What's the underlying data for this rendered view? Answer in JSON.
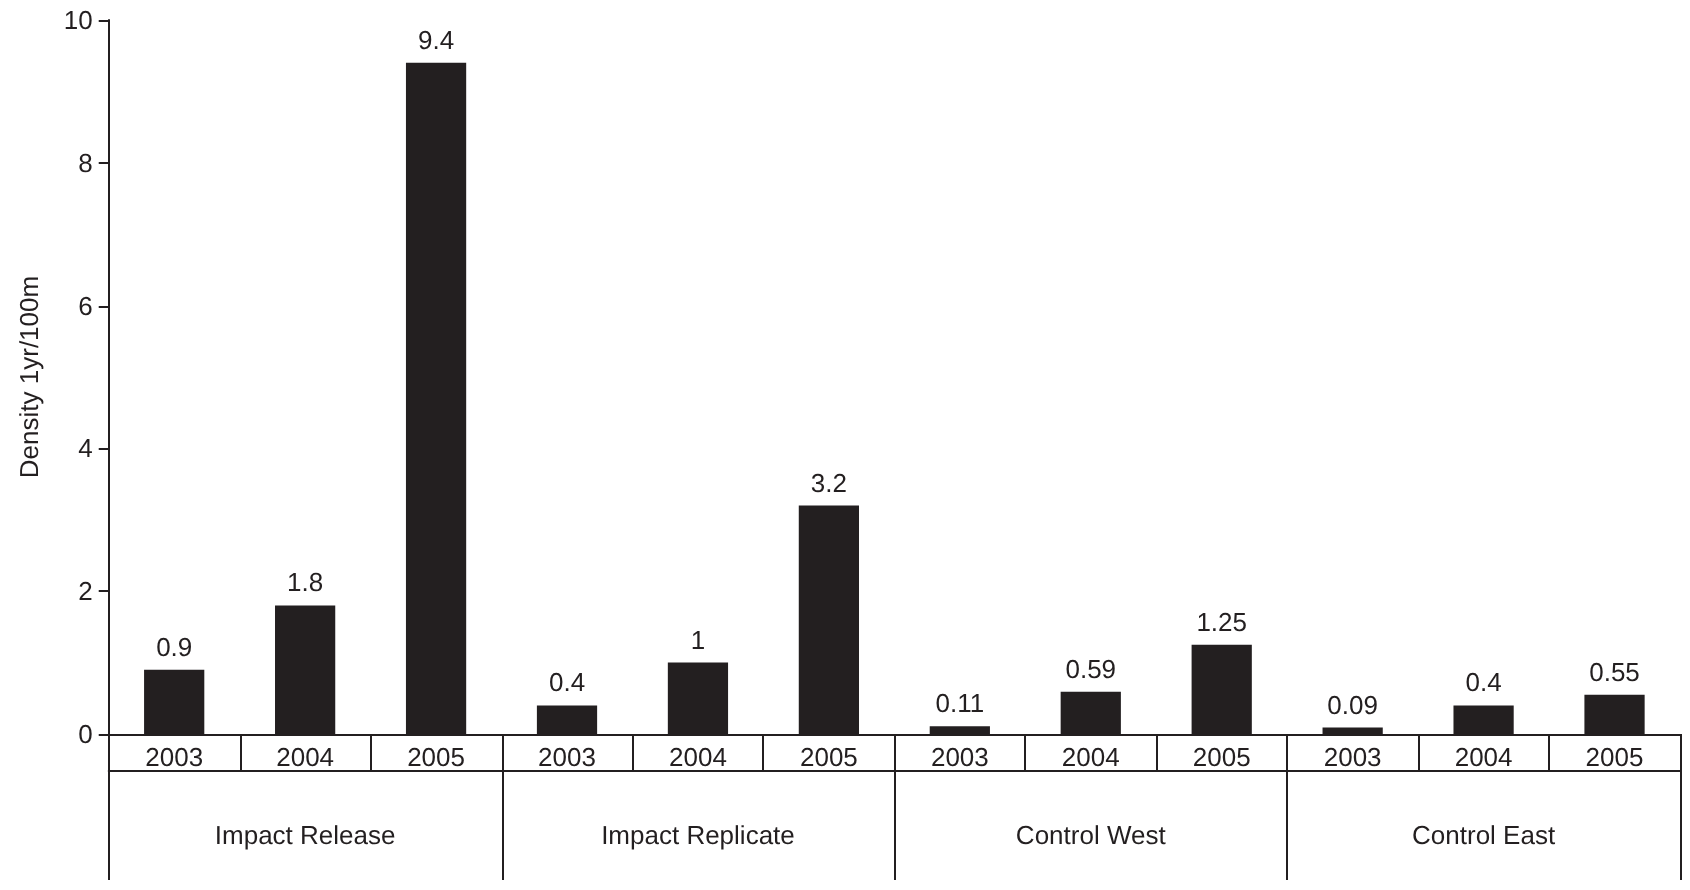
{
  "chart_data": {
    "type": "bar",
    "ylabel": "Density 1yr/100m",
    "categories": [
      "2003",
      "2004",
      "2005",
      "2003",
      "2004",
      "2005",
      "2003",
      "2004",
      "2005",
      "2003",
      "2004",
      "2005"
    ],
    "values": [
      0.9,
      1.8,
      9.4,
      0.4,
      1,
      3.2,
      0.11,
      0.59,
      1.25,
      0.09,
      0.4,
      0.55
    ],
    "color": "#231f20",
    "data_labels": true,
    "ylim": [
      0,
      10
    ],
    "yticks": [
      0,
      2,
      4,
      6,
      8,
      10
    ],
    "annotations": [
      "Impact Release",
      "Impact Replicate",
      "Control West",
      "Control East"
    ]
  }
}
